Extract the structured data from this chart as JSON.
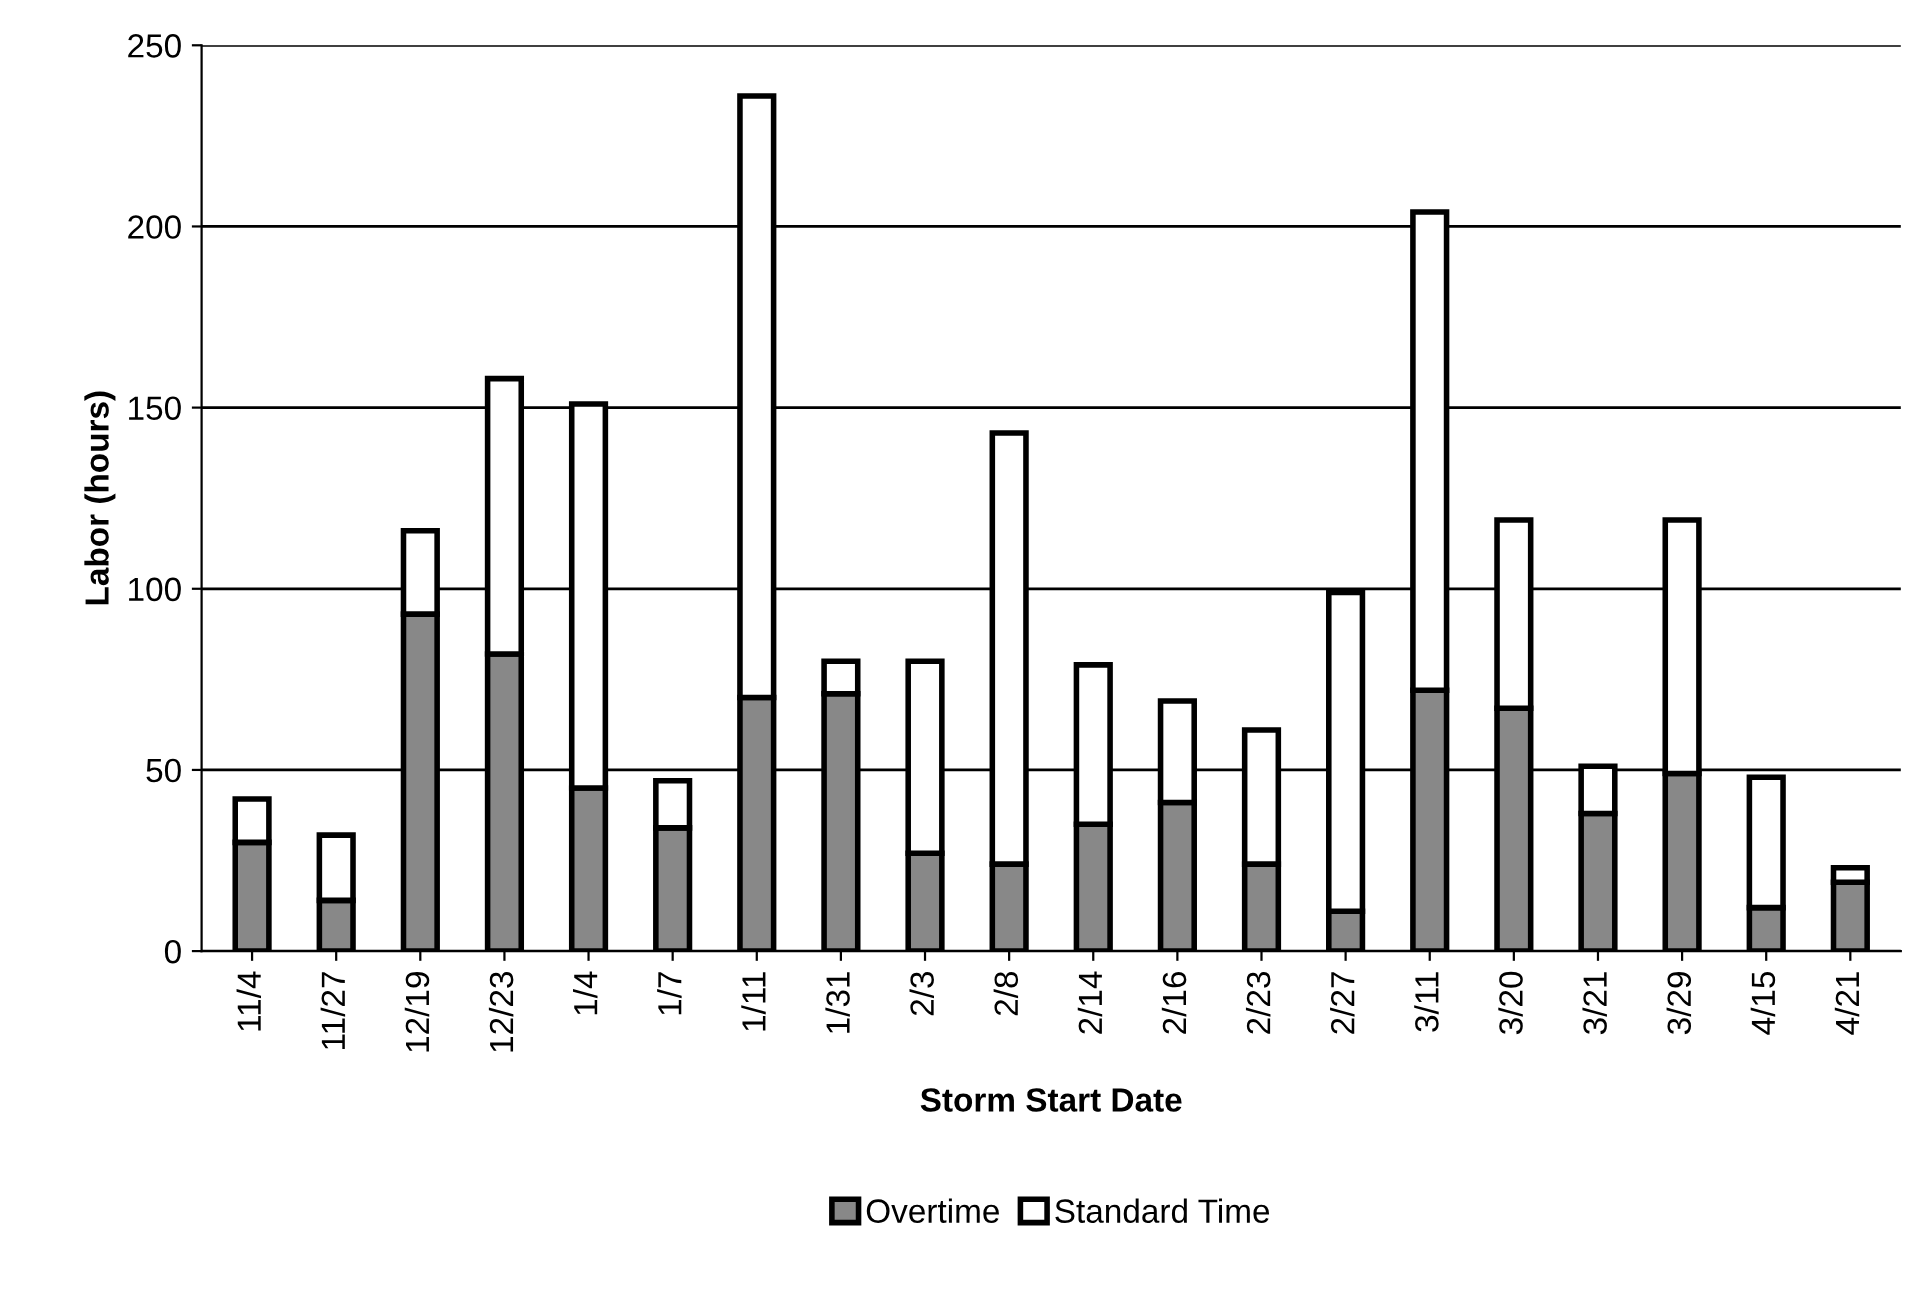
{
  "chart_data": {
    "type": "bar",
    "stacked": true,
    "xlabel": "Storm Start Date",
    "ylabel": "Labor (hours)",
    "categories": [
      "11/4",
      "11/27",
      "12/19",
      "12/23",
      "1/4",
      "1/7",
      "1/11",
      "1/31",
      "2/3",
      "2/8",
      "2/14",
      "2/16",
      "2/23",
      "2/27",
      "3/11",
      "3/20",
      "3/21",
      "3/29",
      "4/15",
      "4/21"
    ],
    "series": [
      {
        "name": "Overtime",
        "color": "#888888",
        "values": [
          30,
          14,
          93,
          82,
          45,
          34,
          70,
          71,
          27,
          24,
          35,
          41,
          24,
          11,
          72,
          67,
          38,
          49,
          12,
          19
        ]
      },
      {
        "name": "Standard Time",
        "color": "#ffffff",
        "values": [
          12,
          18,
          23,
          76,
          106,
          13,
          166,
          9,
          53,
          119,
          44,
          28,
          37,
          88,
          132,
          52,
          13,
          70,
          36,
          4
        ]
      }
    ],
    "ylim": [
      0,
      250
    ],
    "yticks": [
      0,
      50,
      100,
      150,
      200,
      250
    ],
    "grid": "y",
    "legend": "bottom"
  }
}
